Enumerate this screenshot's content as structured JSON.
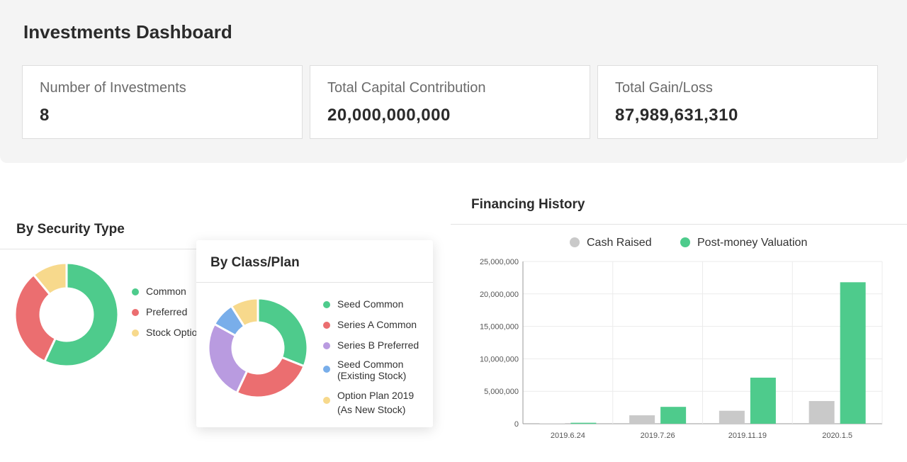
{
  "dashboard": {
    "title": "Investments Dashboard"
  },
  "stats": [
    {
      "label": "Number of Investments",
      "value": "8"
    },
    {
      "label": "Total Capital Contribution",
      "value": "20,000,000,000"
    },
    {
      "label": "Total Gain/Loss",
      "value": "87,989,631,310"
    }
  ],
  "security_type": {
    "title": "By Security Type",
    "legend": [
      {
        "label": "Common",
        "color": "#4ecb8c"
      },
      {
        "label": "Preferred",
        "color": "#eb6e70"
      },
      {
        "label": "Stock Option",
        "color": "#f7d98c"
      }
    ],
    "slices": [
      {
        "value": 57,
        "color": "#4ecb8c"
      },
      {
        "value": 32,
        "color": "#eb6e70"
      },
      {
        "value": 11,
        "color": "#f7d98c"
      }
    ]
  },
  "class_plan": {
    "title": "By Class/Plan",
    "legend": [
      {
        "label": "Seed Common",
        "color": "#4ecb8c"
      },
      {
        "label": "Series A Common",
        "color": "#eb6e70"
      },
      {
        "label": "Series B Preferred",
        "color": "#b99be0"
      },
      {
        "label_line1": "Seed Common",
        "label_line2": "(Existing Stock)",
        "color": "#79aeea"
      },
      {
        "label_line1": "Option Plan 2019",
        "label_line2": "(As New Stock)",
        "color": "#f7d98c"
      }
    ],
    "slices": [
      {
        "value": 31,
        "color": "#4ecb8c"
      },
      {
        "value": 26,
        "color": "#eb6e70"
      },
      {
        "value": 26,
        "color": "#b99be0"
      },
      {
        "value": 8,
        "color": "#79aeea"
      },
      {
        "value": 9,
        "color": "#f7d98c"
      }
    ]
  },
  "financing": {
    "title": "Financing History",
    "chart_data": {
      "type": "bar",
      "categories": [
        "2019.6.24",
        "2019.7.26",
        "2019.11.19",
        "2020.1.5"
      ],
      "series": [
        {
          "name": "Cash Raised",
          "color": "#c9c9c9",
          "values": [
            50000,
            1300000,
            2000000,
            3500000
          ]
        },
        {
          "name": "Post-money Valuation",
          "color": "#4ecb8c",
          "values": [
            150000,
            2600000,
            7100000,
            21800000
          ]
        }
      ],
      "ylim": [
        0,
        25000000
      ],
      "yticks": [
        "0",
        "5,000,000",
        "10,000,000",
        "15,000,000",
        "20,000,000",
        "25,000,000"
      ],
      "ytick_values": [
        0,
        5000000,
        10000000,
        15000000,
        20000000,
        25000000
      ],
      "grid": true,
      "legend": "top"
    }
  }
}
